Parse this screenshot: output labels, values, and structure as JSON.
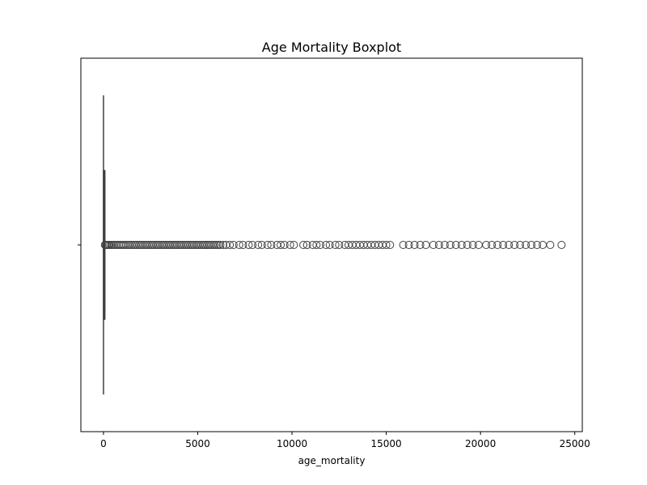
{
  "chart_data": {
    "type": "boxplot",
    "orientation": "horizontal",
    "title": "Age Mortality Boxplot",
    "xlabel": "age_mortality",
    "ylabel": "",
    "xlim": [
      -1200,
      25400
    ],
    "xticks": [
      0,
      5000,
      10000,
      15000,
      20000,
      25000
    ],
    "xtick_labels": [
      "0",
      "5000",
      "10000",
      "15000",
      "20000",
      "25000"
    ],
    "grid": false,
    "box": {
      "q1": 2,
      "median": 8,
      "q3": 30,
      "whisker_low": 0,
      "whisker_high": 70
    },
    "outliers": [
      80,
      120,
      180,
      250,
      320,
      400,
      480,
      560,
      650,
      740,
      830,
      920,
      1010,
      1100,
      1200,
      1300,
      1400,
      1500,
      1600,
      1700,
      1800,
      1900,
      2000,
      2100,
      2200,
      2300,
      2400,
      2500,
      2600,
      2700,
      2800,
      2900,
      3000,
      3100,
      3200,
      3300,
      3400,
      3500,
      3600,
      3700,
      3800,
      3900,
      4000,
      4100,
      4200,
      4300,
      4400,
      4500,
      4600,
      4700,
      4800,
      4900,
      5000,
      5100,
      5200,
      5300,
      5400,
      5500,
      5600,
      5700,
      5800,
      5900,
      6000,
      6100,
      6200,
      6350,
      6500,
      6700,
      6900,
      7200,
      7400,
      7700,
      7900,
      8200,
      8400,
      8700,
      8900,
      9200,
      9400,
      9600,
      9900,
      10100,
      10600,
      10800,
      11100,
      11300,
      11500,
      11800,
      12000,
      12300,
      12500,
      12800,
      13000,
      13200,
      13400,
      13600,
      13800,
      14000,
      14200,
      14400,
      14600,
      14800,
      15000,
      15200,
      15900,
      16200,
      16500,
      16800,
      17100,
      17500,
      17800,
      18100,
      18400,
      18700,
      19000,
      19300,
      19600,
      19900,
      20300,
      20600,
      20900,
      21200,
      21500,
      21800,
      22100,
      22400,
      22700,
      23000,
      23300,
      23700,
      24300
    ],
    "colors": {
      "line": "#3f3f3f",
      "box_fill": "#3a73a8",
      "outlier_edge": "#3f3f3f"
    }
  }
}
